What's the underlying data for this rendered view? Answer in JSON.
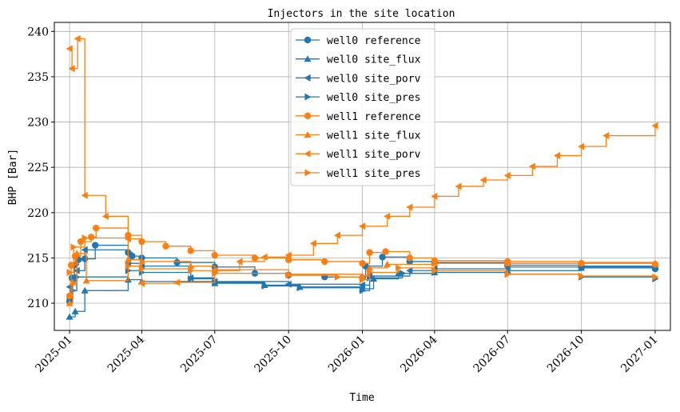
{
  "chart_data": {
    "type": "line",
    "title": "Injectors in the site location",
    "xlabel": "Time",
    "ylabel": "BHP [Bar]",
    "ylim": [
      207,
      241
    ],
    "xlim": [
      "2024-12-13",
      "2027-01-20"
    ],
    "yticks": [
      210,
      215,
      220,
      225,
      230,
      235,
      240
    ],
    "xticks": [
      "2025-01",
      "2025-04",
      "2025-07",
      "2025-10",
      "2026-01",
      "2026-04",
      "2026-07",
      "2026-10",
      "2027-01"
    ],
    "x_tick_dates": [
      "2025-01-01",
      "2025-04-01",
      "2025-07-01",
      "2025-10-01",
      "2026-01-01",
      "2026-04-01",
      "2026-07-01",
      "2026-10-01",
      "2027-01-01"
    ],
    "grid": true,
    "legend_position": "top-center",
    "colors": {
      "well0": "#1f77b4",
      "well1": "#ff7f0e"
    },
    "series": [
      {
        "name": "well0 reference",
        "color": "#1f77b4",
        "marker": "circle",
        "points": [
          [
            "2025-01-01",
            210.2
          ],
          [
            "2025-01-04",
            212.8
          ],
          [
            "2025-01-07",
            214.2
          ],
          [
            "2025-01-12",
            214.8
          ],
          [
            "2025-01-20",
            214.9
          ],
          [
            "2025-02-02",
            216.4
          ],
          [
            "2025-03-15",
            215.6
          ],
          [
            "2025-03-20",
            215.2
          ],
          [
            "2025-04-01",
            215.0
          ],
          [
            "2025-05-15",
            214.5
          ],
          [
            "2025-07-01",
            214.0
          ],
          [
            "2025-08-20",
            213.3
          ],
          [
            "2025-10-01",
            213.1
          ],
          [
            "2025-11-15",
            212.9
          ],
          [
            "2026-01-01",
            212.8
          ],
          [
            "2026-01-05",
            214.1
          ],
          [
            "2026-01-26",
            215.1
          ],
          [
            "2026-03-01",
            214.6
          ],
          [
            "2026-04-01",
            214.5
          ],
          [
            "2026-07-01",
            214.2
          ],
          [
            "2026-10-01",
            214.0
          ],
          [
            "2027-01-01",
            213.8
          ]
        ]
      },
      {
        "name": "well0 site_flux",
        "color": "#1f77b4",
        "marker": "triangle-up",
        "points": [
          [
            "2025-01-01",
            208.5
          ],
          [
            "2025-01-08",
            209.1
          ],
          [
            "2025-01-20",
            211.4
          ],
          [
            "2025-03-15",
            212.6
          ],
          [
            "2025-04-01",
            212.4
          ],
          [
            "2025-07-01",
            212.2
          ],
          [
            "2025-09-01",
            212.0
          ],
          [
            "2025-10-15",
            211.8
          ],
          [
            "2026-01-01",
            211.6
          ],
          [
            "2026-01-15",
            212.7
          ],
          [
            "2026-02-15",
            213.3
          ],
          [
            "2026-04-01",
            213.4
          ],
          [
            "2026-07-01",
            213.6
          ],
          [
            "2026-10-01",
            213.9
          ],
          [
            "2027-01-01",
            214.0
          ]
        ]
      },
      {
        "name": "well0 site_porv",
        "color": "#1f77b4",
        "marker": "triangle-left",
        "points": [
          [
            "2025-01-01",
            211.8
          ],
          [
            "2025-01-05",
            212.5
          ],
          [
            "2025-01-10",
            213.6
          ],
          [
            "2025-01-20",
            215.9
          ],
          [
            "2025-03-15",
            214.4
          ],
          [
            "2025-04-01",
            214.1
          ],
          [
            "2025-06-01",
            212.8
          ],
          [
            "2025-07-01",
            212.4
          ],
          [
            "2025-10-01",
            212.1
          ],
          [
            "2026-01-01",
            212.0
          ],
          [
            "2026-01-10",
            213.0
          ],
          [
            "2026-03-01",
            213.6
          ],
          [
            "2026-04-01",
            213.8
          ],
          [
            "2026-07-01",
            214.0
          ],
          [
            "2026-10-01",
            214.1
          ],
          [
            "2027-01-01",
            214.0
          ]
        ]
      },
      {
        "name": "well0 site_pres",
        "color": "#1f77b4",
        "marker": "triangle-right",
        "points": [
          [
            "2025-01-01",
            210.5
          ],
          [
            "2025-01-05",
            211.4
          ],
          [
            "2025-01-10",
            212.9
          ],
          [
            "2025-03-15",
            213.6
          ],
          [
            "2025-04-01",
            213.4
          ],
          [
            "2025-06-01",
            212.7
          ],
          [
            "2025-07-01",
            212.3
          ],
          [
            "2025-09-01",
            211.9
          ],
          [
            "2025-10-15",
            211.7
          ],
          [
            "2026-01-01",
            211.4
          ],
          [
            "2026-01-10",
            212.8
          ],
          [
            "2026-02-20",
            213.3
          ],
          [
            "2026-04-01",
            213.4
          ],
          [
            "2026-07-01",
            213.2
          ],
          [
            "2026-10-01",
            212.9
          ],
          [
            "2027-01-01",
            212.7
          ]
        ]
      },
      {
        "name": "well1 reference",
        "color": "#ff7f0e",
        "marker": "circle",
        "points": [
          [
            "2025-01-01",
            210.8
          ],
          [
            "2025-01-03",
            214.2
          ],
          [
            "2025-01-08",
            215.2
          ],
          [
            "2025-01-15",
            216.8
          ],
          [
            "2025-01-28",
            217.3
          ],
          [
            "2025-02-03",
            218.3
          ],
          [
            "2025-03-15",
            217.5
          ],
          [
            "2025-04-01",
            216.8
          ],
          [
            "2025-05-01",
            216.3
          ],
          [
            "2025-06-01",
            215.8
          ],
          [
            "2025-07-01",
            215.3
          ],
          [
            "2025-08-20",
            215.0
          ],
          [
            "2025-10-01",
            214.8
          ],
          [
            "2025-11-15",
            214.6
          ],
          [
            "2026-01-01",
            214.4
          ],
          [
            "2026-01-10",
            215.6
          ],
          [
            "2026-01-30",
            215.7
          ],
          [
            "2026-03-01",
            215.0
          ],
          [
            "2026-04-01",
            214.7
          ],
          [
            "2026-07-01",
            214.6
          ],
          [
            "2026-10-01",
            214.4
          ],
          [
            "2027-01-01",
            214.3
          ]
        ]
      },
      {
        "name": "well1 site_flux",
        "color": "#ff7f0e",
        "marker": "triangle-up",
        "points": [
          [
            "2025-01-01",
            210.0
          ],
          [
            "2025-01-05",
            212.3
          ],
          [
            "2025-01-10",
            215.5
          ],
          [
            "2025-01-22",
            212.5
          ],
          [
            "2025-03-15",
            214.8
          ],
          [
            "2025-04-01",
            214.6
          ],
          [
            "2025-06-01",
            214.1
          ],
          [
            "2025-07-01",
            213.7
          ],
          [
            "2025-10-01",
            213.2
          ],
          [
            "2026-01-01",
            213.0
          ],
          [
            "2026-01-10",
            213.9
          ],
          [
            "2026-02-01",
            214.3
          ],
          [
            "2026-04-01",
            214.4
          ],
          [
            "2026-07-01",
            214.4
          ],
          [
            "2026-10-01",
            214.5
          ],
          [
            "2027-01-01",
            214.4
          ]
        ]
      },
      {
        "name": "well1 site_porv",
        "color": "#ff7f0e",
        "marker": "triangle-left",
        "points": [
          [
            "2025-01-01",
            238.1
          ],
          [
            "2025-01-04",
            235.9
          ],
          [
            "2025-01-11",
            239.2
          ],
          [
            "2025-01-20",
            221.9
          ],
          [
            "2025-02-15",
            219.6
          ],
          [
            "2025-03-15",
            217.1
          ],
          [
            "2025-04-01",
            212.2
          ],
          [
            "2025-05-15",
            212.3
          ],
          [
            "2025-07-01",
            213.6
          ],
          [
            "2025-08-01",
            214.6
          ],
          [
            "2025-09-01",
            215.1
          ],
          [
            "2025-10-01",
            215.3
          ],
          [
            "2025-11-01",
            216.6
          ],
          [
            "2025-12-01",
            217.5
          ],
          [
            "2026-01-01",
            218.5
          ],
          [
            "2026-02-01",
            219.6
          ],
          [
            "2026-03-01",
            220.6
          ],
          [
            "2026-04-01",
            221.8
          ],
          [
            "2026-05-01",
            222.9
          ],
          [
            "2026-06-01",
            223.6
          ],
          [
            "2026-07-01",
            224.1
          ],
          [
            "2026-08-01",
            225.1
          ],
          [
            "2026-09-01",
            226.3
          ],
          [
            "2026-10-01",
            227.3
          ],
          [
            "2026-11-01",
            228.5
          ],
          [
            "2027-01-01",
            229.6
          ]
        ]
      },
      {
        "name": "well1 site_pres",
        "color": "#ff7f0e",
        "marker": "triangle-right",
        "points": [
          [
            "2025-01-01",
            213.4
          ],
          [
            "2025-01-06",
            216.2
          ],
          [
            "2025-01-20",
            217.2
          ],
          [
            "2025-03-15",
            214.1
          ],
          [
            "2025-04-01",
            213.8
          ],
          [
            "2025-06-01",
            213.6
          ],
          [
            "2025-07-01",
            213.3
          ],
          [
            "2025-10-01",
            213.1
          ],
          [
            "2025-12-01",
            212.9
          ],
          [
            "2026-01-01",
            212.6
          ],
          [
            "2026-01-10",
            213.4
          ],
          [
            "2026-02-15",
            213.9
          ],
          [
            "2026-04-01",
            213.6
          ],
          [
            "2026-07-01",
            213.2
          ],
          [
            "2026-10-01",
            213.0
          ],
          [
            "2027-01-01",
            212.9
          ]
        ]
      }
    ]
  }
}
